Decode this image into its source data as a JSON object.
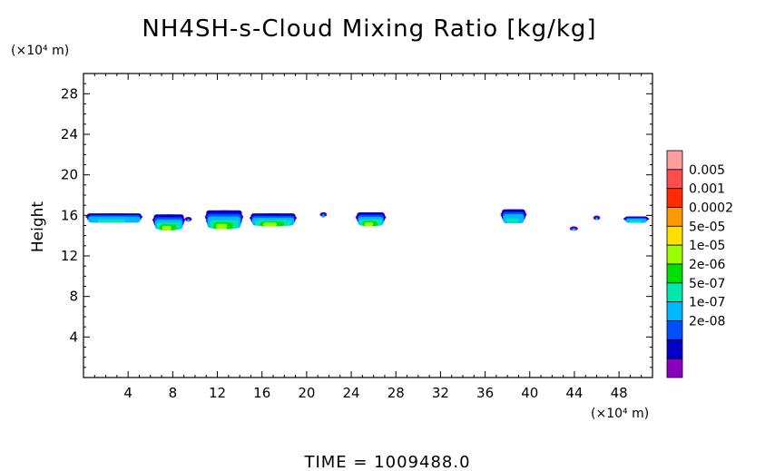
{
  "chart_data": {
    "type": "heatmap",
    "title": "NH4SH-s-Cloud Mixing Ratio [kg/kg]",
    "ylabel": "Height",
    "x_unit": "(×10⁴ m)",
    "y_unit": "(×10⁴ m)",
    "xlim": [
      0,
      51
    ],
    "ylim": [
      0,
      30
    ],
    "x_ticks": [
      "4",
      "8",
      "12",
      "16",
      "20",
      "24",
      "28",
      "32",
      "36",
      "40",
      "44",
      "48"
    ],
    "y_ticks": [
      "4",
      "8",
      "12",
      "16",
      "20",
      "24",
      "28"
    ],
    "time_label": "TIME  =  1009488.0",
    "colorbar": {
      "labels": [
        "0.005",
        "0.001",
        "0.0002",
        "5e-05",
        "1e-05",
        "2e-06",
        "5e-07",
        "1e-07",
        "2e-08"
      ],
      "colors": [
        "#ff9e9e",
        "#ff4d4d",
        "#ff2a00",
        "#ff9900",
        "#ffe000",
        "#9cff00",
        "#00e000",
        "#00e8b0",
        "#00b8ff",
        "#0050ff",
        "#0000c8",
        "#8a00c0"
      ]
    },
    "cloud_patches": [
      {
        "x": [
          0.3,
          5.2
        ],
        "y": [
          15.2,
          16.2
        ],
        "level": "5e-07"
      },
      {
        "x": [
          6.3,
          9.0
        ],
        "y": [
          14.5,
          16.1
        ],
        "level": "1e-05"
      },
      {
        "x": [
          9.2,
          9.6
        ],
        "y": [
          15.3,
          15.8
        ],
        "level": "5e-07"
      },
      {
        "x": [
          11.0,
          14.2
        ],
        "y": [
          14.6,
          16.5
        ],
        "level": "1e-05"
      },
      {
        "x": [
          15.0,
          19.0
        ],
        "y": [
          14.9,
          16.2
        ],
        "level": "1e-05"
      },
      {
        "x": [
          21.3,
          21.7
        ],
        "y": [
          15.7,
          16.3
        ],
        "level": "5e-07"
      },
      {
        "x": [
          24.5,
          27.0
        ],
        "y": [
          14.9,
          16.3
        ],
        "level": "1e-05"
      },
      {
        "x": [
          37.5,
          39.6
        ],
        "y": [
          15.1,
          16.6
        ],
        "level": "5e-07"
      },
      {
        "x": [
          43.7,
          44.2
        ],
        "y": [
          14.5,
          14.8
        ],
        "level": "1e-05"
      },
      {
        "x": [
          45.8,
          46.2
        ],
        "y": [
          15.5,
          15.9
        ],
        "level": "5e-07"
      },
      {
        "x": [
          48.5,
          50.6
        ],
        "y": [
          15.2,
          15.9
        ],
        "level": "5e-07"
      }
    ]
  }
}
